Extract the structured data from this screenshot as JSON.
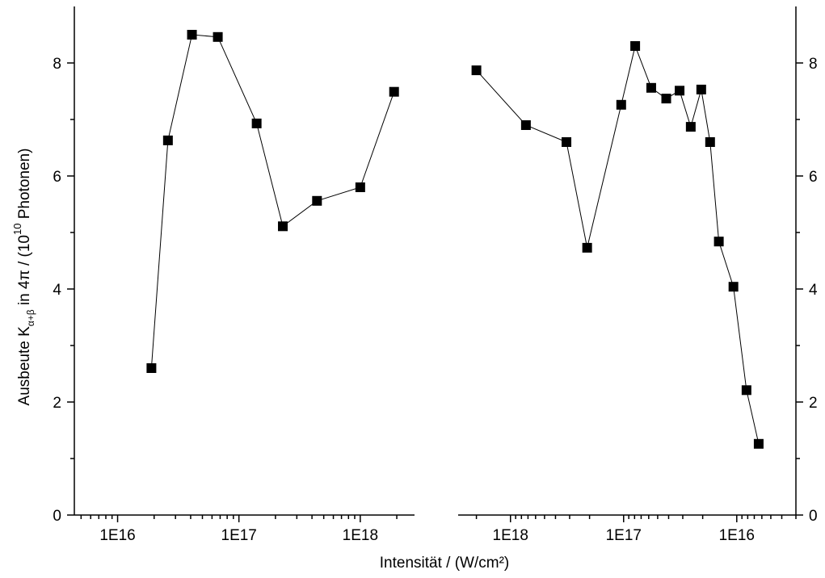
{
  "chart_data": [
    {
      "type": "line",
      "xscale": "log",
      "xreverse": false,
      "minor_ticks": true,
      "ylabel": [
        "Ausbeute K",
        "α+β",
        " in 4π / (10",
        "10",
        " Photonen)"
      ],
      "xlabel": "Intensität / (W/cm²)",
      "xlim": [
        4400000000000000.0,
        2.8e+18
      ],
      "ylim": [
        0,
        9
      ],
      "xticks": [
        {
          "value": 1e+16,
          "label": "1E16"
        },
        {
          "value": 1e+17,
          "label": "1E17"
        },
        {
          "value": 1e+18,
          "label": "1E18"
        }
      ],
      "yticks": [
        0,
        2,
        4,
        6,
        8
      ],
      "x": [
        1.9e+16,
        2.6e+16,
        4.1e+16,
        6.7e+16,
        1.4e+17,
        2.3e+17,
        4.4e+17,
        1e+18,
        1.9e+18
      ],
      "series": [
        {
          "color": "#000000",
          "values": [
            2.6,
            6.63,
            8.5,
            8.46,
            6.93,
            5.11,
            5.56,
            5.8,
            7.49
          ]
        }
      ]
    },
    {
      "type": "line",
      "xscale": "log",
      "xreverse": true,
      "minor_ticks": true,
      "xlim": [
        2.9e+18,
        3000000000000000.0
      ],
      "ylim": [
        0,
        9
      ],
      "xticks": [
        {
          "value": 1e+18,
          "label": "1E18"
        },
        {
          "value": 1e+17,
          "label": "1E17"
        },
        {
          "value": 1e+16,
          "label": "1E16"
        }
      ],
      "yticks": [
        0,
        2,
        4,
        6,
        8
      ],
      "x": [
        2e+18,
        7.3e+17,
        3.2e+17,
        2.1e+17,
        1.05e+17,
        7.9e+16,
        5.7e+16,
        4.2e+16,
        3.2e+16,
        2.55e+16,
        2.06e+16,
        1.72e+16,
        1.44e+16,
        1.07e+16,
        8200000000000000.0,
        6400000000000000.0
      ],
      "series": [
        {
          "color": "#000000",
          "values": [
            7.87,
            6.9,
            6.6,
            4.73,
            7.26,
            8.3,
            7.56,
            7.37,
            7.51,
            6.87,
            7.53,
            6.6,
            4.84,
            4.04,
            2.21,
            1.26
          ]
        }
      ]
    }
  ]
}
